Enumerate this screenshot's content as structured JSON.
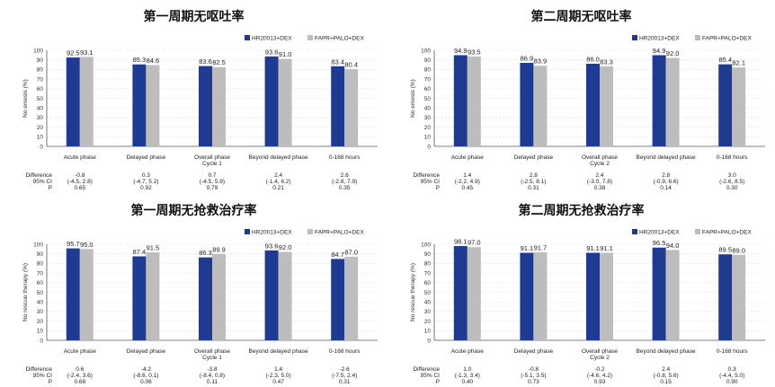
{
  "colors": {
    "hr": "#1f3a93",
    "fapr": "#bdbdbd",
    "axis": "#555555",
    "grid": "#dddddd"
  },
  "legend": [
    "HR20013+DEX",
    "FAPR+PALO+DEX"
  ],
  "chart_data": [
    {
      "type": "bar",
      "title": "第一周期无呕吐率",
      "ylabel": "No emesis (%)",
      "ylim": [
        0,
        100
      ],
      "yticks": [
        0,
        10,
        20,
        30,
        40,
        50,
        60,
        70,
        80,
        90,
        100
      ],
      "categories": [
        [
          "Acute phase"
        ],
        [
          "Delayed phase"
        ],
        [
          "Overall phase",
          "Cycle 1"
        ],
        [
          "Beyond delayed phase"
        ],
        [
          "0-168 hours"
        ]
      ],
      "series": [
        {
          "name": "HR20013+DEX",
          "values": [
            92.5,
            85.3,
            83.6,
            93.6,
            83.4
          ],
          "labels": [
            "92.5",
            "85.3",
            "83.6",
            "93.6",
            "83.4"
          ]
        },
        {
          "name": "FAPR+PALO+DEX",
          "values": [
            93.1,
            84.6,
            82.5,
            91.0,
            80.4
          ],
          "labels": [
            "93.1",
            "84.6",
            "82.5",
            "91.0",
            "80.4"
          ]
        }
      ],
      "stats": {
        "row_labels": [
          "Difference",
          "95% CI",
          "P"
        ],
        "columns": [
          [
            "-0.8",
            "(-4.5, 2.8)",
            "0.65"
          ],
          [
            "0.3",
            "(-4.7, 5.2)",
            "0.92"
          ],
          [
            "0.7",
            "(-4.5, 5.9)",
            "0.79"
          ],
          [
            "2.4",
            "(-1.4, 6.2)",
            "0.21"
          ],
          [
            "2.6",
            "(-2.8, 7.9)",
            "0.35"
          ]
        ]
      }
    },
    {
      "type": "bar",
      "title": "第二周期无呕吐率",
      "ylabel": "No emesis (%)",
      "ylim": [
        0,
        100
      ],
      "yticks": [
        0,
        10,
        20,
        30,
        40,
        50,
        60,
        70,
        80,
        90,
        100
      ],
      "categories": [
        [
          "Acute phase"
        ],
        [
          "Delayed phase"
        ],
        [
          "Overall phase",
          "Cycle 2"
        ],
        [
          "Beyond delayed phase"
        ],
        [
          "0-168 hours"
        ]
      ],
      "series": [
        {
          "name": "HR20013+DEX",
          "values": [
            94.9,
            86.9,
            86.0,
            94.9,
            85.4
          ],
          "labels": [
            "94.9",
            "86.9",
            "86.0",
            "94.9",
            "85.4"
          ]
        },
        {
          "name": "FAPR+PALO+DEX",
          "values": [
            93.5,
            83.9,
            83.3,
            92.0,
            82.1
          ],
          "labels": [
            "93.5",
            "83.9",
            "83.3",
            "92.0",
            "82.1"
          ]
        }
      ],
      "stats": {
        "row_labels": [
          "Difference",
          "95% CI",
          "P"
        ],
        "columns": [
          [
            "1.4",
            "(-2.2, 4.9)",
            "0.45"
          ],
          [
            "2.8",
            "(-2.5, 8.1)",
            "0.31"
          ],
          [
            "2.4",
            "(-3.0, 7.8)",
            "0.38"
          ],
          [
            "2.8",
            "(-0.9, 6.6)",
            "0.14"
          ],
          [
            "3.0",
            "(-2.6, 8.5)",
            "0.30"
          ]
        ]
      }
    },
    {
      "type": "bar",
      "title": "第一周期无抢救治疗率",
      "ylabel": "No rescue therapy (%)",
      "ylim": [
        0,
        100
      ],
      "yticks": [
        0,
        10,
        20,
        30,
        40,
        50,
        60,
        70,
        80,
        90,
        100
      ],
      "categories": [
        [
          "Acute phase"
        ],
        [
          "Delayed phase"
        ],
        [
          "Overall phase",
          "Cycle 1"
        ],
        [
          "Beyond delayed phase"
        ],
        [
          "0-168 hours"
        ]
      ],
      "series": [
        {
          "name": "HR20013+DEX",
          "values": [
            95.7,
            87.4,
            86.3,
            93.6,
            84.7
          ],
          "labels": [
            "95.7",
            "87.4",
            "86.3",
            "93.6",
            "84.7"
          ]
        },
        {
          "name": "FAPR+PALO+DEX",
          "values": [
            95.0,
            91.5,
            89.9,
            92.0,
            87.0
          ],
          "labels": [
            "95.0",
            "91.5",
            "89.9",
            "92.0",
            "87.0"
          ]
        }
      ],
      "stats": {
        "row_labels": [
          "Difference",
          "95% CI",
          "P"
        ],
        "columns": [
          [
            "0.6",
            "(-2.4, 3.6)",
            "0.68"
          ],
          [
            "-4.2",
            "(-8.6, 0.1)",
            "0.06"
          ],
          [
            "-3.8",
            "(-8.4, 0.8)",
            "0.11"
          ],
          [
            "1.4",
            "(-2.3, 5.0)",
            "0.47"
          ],
          [
            "-2.6",
            "(-7.5, 2.4)",
            "0.31"
          ]
        ]
      }
    },
    {
      "type": "bar",
      "title": "第二周期无抢救治疗率",
      "ylabel": "No rescue therapy (%)",
      "ylim": [
        0,
        100
      ],
      "yticks": [
        0,
        10,
        20,
        30,
        40,
        50,
        60,
        70,
        80,
        90,
        100
      ],
      "categories": [
        [
          "Acute phase"
        ],
        [
          "Delayed phase"
        ],
        [
          "Overall phase",
          "Cycle 2"
        ],
        [
          "Beyond delayed phase"
        ],
        [
          "0-168 hours"
        ]
      ],
      "series": [
        {
          "name": "HR20013+DEX",
          "values": [
            98.1,
            91.1,
            91.1,
            96.5,
            89.5
          ],
          "labels": [
            "98.1",
            "91.1",
            "91.1",
            "96.5",
            "89.5"
          ]
        },
        {
          "name": "FAPR+PALO+DEX",
          "values": [
            97.0,
            91.7,
            91.1,
            94.0,
            89.0
          ],
          "labels": [
            "97.0",
            "91.7",
            "91.1",
            "94.0",
            "89.0"
          ]
        }
      ],
      "stats": {
        "row_labels": [
          "Difference",
          "95% CI",
          "P"
        ],
        "columns": [
          [
            "1.0",
            "(-1.3, 3.4)",
            "0.40"
          ],
          [
            "-0.8",
            "(-5.1, 3.5)",
            "0.73"
          ],
          [
            "-0.2",
            "(-4.6, 4.2)",
            "0.93"
          ],
          [
            "2.4",
            "(-0.8, 5.6)",
            "0.15"
          ],
          [
            "0.3",
            "(-4.4, 5.0)",
            "0.90"
          ]
        ]
      }
    }
  ]
}
